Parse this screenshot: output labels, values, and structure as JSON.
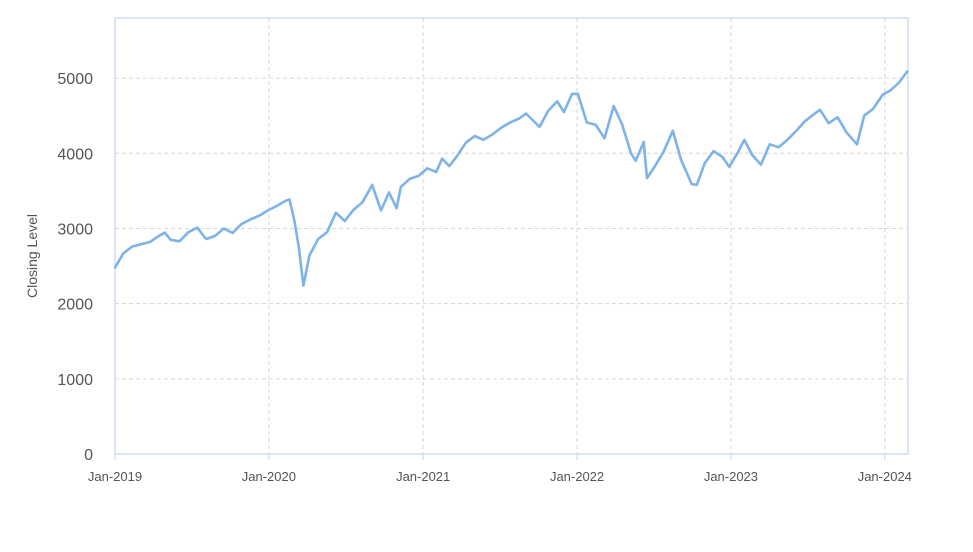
{
  "chart_data": {
    "type": "line",
    "title": "",
    "xlabel": "",
    "ylabel": "Closing Level",
    "ylim": [
      0,
      5800
    ],
    "xlim": [
      "2019-01-01",
      "2024-02-25"
    ],
    "yticks": [
      0,
      1000,
      2000,
      3000,
      4000,
      5000
    ],
    "xticks": [
      {
        "date": "2019-01-01",
        "label": "Jan-2019"
      },
      {
        "date": "2020-01-01",
        "label": "Jan-2020"
      },
      {
        "date": "2021-01-01",
        "label": "Jan-2021"
      },
      {
        "date": "2022-01-01",
        "label": "Jan-2022"
      },
      {
        "date": "2023-01-01",
        "label": "Jan-2023"
      },
      {
        "date": "2024-01-01",
        "label": "Jan-2024"
      }
    ],
    "grid": true,
    "legend": "none",
    "line_color": "#7eb3e8",
    "grid_color": "#d6d6d6",
    "frame_color": "#c5d4e8",
    "series": [
      {
        "x": [
          "2019-01-01",
          "2019-01-21",
          "2019-02-11",
          "2019-03-04",
          "2019-03-25",
          "2019-04-15",
          "2019-04-29",
          "2019-05-13",
          "2019-06-03",
          "2019-06-24",
          "2019-07-15",
          "2019-08-05",
          "2019-08-26",
          "2019-09-16",
          "2019-10-07",
          "2019-10-28",
          "2019-11-18",
          "2019-12-09",
          "2019-12-30",
          "2020-01-20",
          "2020-02-10",
          "2020-02-19",
          "2020-03-02",
          "2020-03-12",
          "2020-03-23",
          "2020-04-06",
          "2020-04-27",
          "2020-05-18",
          "2020-06-08",
          "2020-06-29",
          "2020-07-20",
          "2020-08-10",
          "2020-09-02",
          "2020-09-23",
          "2020-10-12",
          "2020-10-30",
          "2020-11-09",
          "2020-11-30",
          "2020-12-21",
          "2021-01-11",
          "2021-02-01",
          "2021-02-15",
          "2021-03-04",
          "2021-03-22",
          "2021-04-12",
          "2021-05-03",
          "2021-05-24",
          "2021-06-14",
          "2021-07-05",
          "2021-07-26",
          "2021-08-16",
          "2021-09-02",
          "2021-09-20",
          "2021-10-04",
          "2021-10-25",
          "2021-11-15",
          "2021-12-01",
          "2021-12-20",
          "2022-01-03",
          "2022-01-24",
          "2022-02-14",
          "2022-03-07",
          "2022-03-29",
          "2022-04-18",
          "2022-05-09",
          "2022-05-20",
          "2022-06-08",
          "2022-06-16",
          "2022-07-05",
          "2022-07-25",
          "2022-08-16",
          "2022-09-05",
          "2022-09-30",
          "2022-10-12",
          "2022-10-31",
          "2022-11-21",
          "2022-12-12",
          "2022-12-28",
          "2023-01-16",
          "2023-02-02",
          "2023-02-20",
          "2023-03-13",
          "2023-04-03",
          "2023-04-24",
          "2023-05-15",
          "2023-06-05",
          "2023-06-26",
          "2023-07-31",
          "2023-08-21",
          "2023-09-11",
          "2023-10-02",
          "2023-10-27",
          "2023-11-13",
          "2023-12-04",
          "2023-12-27",
          "2024-01-15",
          "2024-02-05",
          "2024-02-23"
        ],
        "y": [
          2480,
          2670,
          2760,
          2790,
          2820,
          2900,
          2945,
          2850,
          2830,
          2950,
          3010,
          2860,
          2900,
          3000,
          2940,
          3060,
          3120,
          3170,
          3240,
          3300,
          3370,
          3385,
          3090,
          2750,
          2240,
          2640,
          2860,
          2950,
          3210,
          3100,
          3250,
          3350,
          3580,
          3240,
          3480,
          3270,
          3550,
          3660,
          3700,
          3800,
          3750,
          3930,
          3830,
          3960,
          4140,
          4230,
          4180,
          4250,
          4340,
          4410,
          4460,
          4530,
          4430,
          4350,
          4570,
          4690,
          4550,
          4790,
          4790,
          4410,
          4380,
          4200,
          4630,
          4380,
          4000,
          3900,
          4150,
          3670,
          3830,
          4020,
          4300,
          3910,
          3590,
          3580,
          3870,
          4030,
          3950,
          3820,
          4000,
          4180,
          3980,
          3850,
          4120,
          4080,
          4180,
          4300,
          4430,
          4580,
          4400,
          4480,
          4280,
          4120,
          4500,
          4590,
          4780,
          4840,
          4950,
          5090
        ]
      }
    ]
  }
}
